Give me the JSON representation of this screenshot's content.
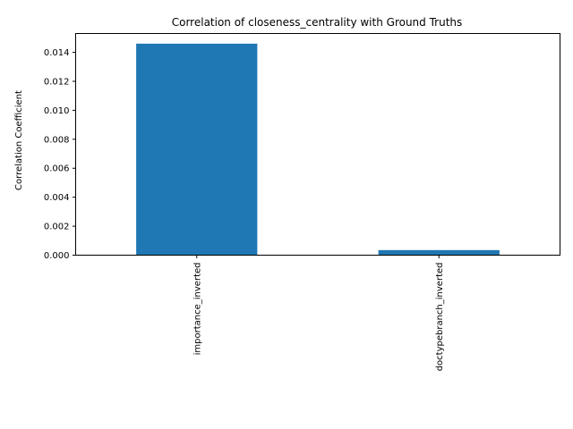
{
  "chart_data": {
    "type": "bar",
    "title": "Correlation of closeness_centrality with Ground Truths",
    "xlabel": "",
    "ylabel": "Correlation Coefficient",
    "categories": [
      "importance_inverted",
      "doctypebranch_inverted"
    ],
    "values": [
      0.0146,
      0.00035
    ],
    "ylim": [
      0,
      0.0153
    ],
    "yticks": [
      0.0,
      0.002,
      0.004,
      0.006,
      0.008,
      0.01,
      0.012,
      0.014
    ],
    "ytick_labels": [
      "0.000",
      "0.002",
      "0.004",
      "0.006",
      "0.008",
      "0.010",
      "0.012",
      "0.014"
    ],
    "grid": false,
    "legend": "none",
    "bar_color": "#1f77b4"
  }
}
